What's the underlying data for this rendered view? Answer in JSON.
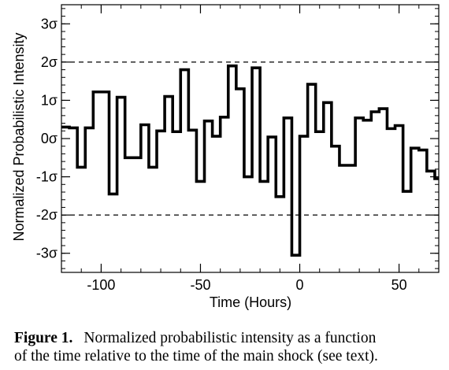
{
  "chart_data": {
    "type": "line",
    "step": true,
    "title": "",
    "xlabel": "Time (Hours)",
    "ylabel": "Normalized Probabilistic Intensity",
    "xlim": [
      -120,
      70
    ],
    "ylim": [
      -3.5,
      3.5
    ],
    "xticks": [
      {
        "value": -100,
        "label": "-100"
      },
      {
        "value": -50,
        "label": "-50"
      },
      {
        "value": 0,
        "label": "0"
      },
      {
        "value": 50,
        "label": "50"
      }
    ],
    "yticks": [
      {
        "value": -3,
        "label": "-3σ"
      },
      {
        "value": -2,
        "label": "-2σ"
      },
      {
        "value": -1,
        "label": "-1σ"
      },
      {
        "value": 0,
        "label": "0σ"
      },
      {
        "value": 1,
        "label": "1σ"
      },
      {
        "value": 2,
        "label": "2σ"
      },
      {
        "value": 3,
        "label": "3σ"
      }
    ],
    "x_minor_step": 10,
    "y_minor_step": 0.2,
    "reference_lines": [
      {
        "axis": "y",
        "value": 2,
        "style": "dashed"
      },
      {
        "axis": "y",
        "value": -2,
        "style": "dashed"
      }
    ],
    "grid": false,
    "legend": "none",
    "series": [
      {
        "x": [
          -120,
          -116,
          -112,
          -108,
          -104,
          -96,
          -92,
          -88,
          -84,
          -80,
          -76,
          -72,
          -68,
          -64,
          -60,
          -56,
          -52,
          -48,
          -44,
          -40,
          -36,
          -32,
          -28,
          -24,
          -20,
          -16,
          -12,
          -8,
          -4,
          0,
          4,
          8,
          12,
          16,
          20,
          24,
          28,
          32,
          36,
          40,
          44,
          48,
          52,
          56,
          60,
          64,
          68
        ],
        "y": [
          0.3,
          0.28,
          -0.75,
          0.28,
          1.22,
          -1.45,
          1.08,
          -0.5,
          -0.5,
          0.36,
          -0.75,
          0.2,
          1.1,
          0.18,
          1.8,
          0.22,
          -1.12,
          0.46,
          0.06,
          0.56,
          1.9,
          1.3,
          -1.0,
          1.85,
          -1.12,
          0.04,
          -1.52,
          0.54,
          -3.05,
          0.06,
          1.42,
          0.18,
          0.94,
          -0.2,
          -0.7,
          -0.7,
          0.54,
          0.48,
          0.7,
          0.78,
          0.26,
          0.34,
          -1.38,
          -0.25,
          -0.3,
          -0.85,
          -1.05
        ],
        "x_end": 70
      }
    ]
  },
  "caption": {
    "label": "Figure 1.",
    "line1": "Normalized probabilistic intensity as a function",
    "line2": "of the time relative to the time of the main shock (see text)."
  }
}
